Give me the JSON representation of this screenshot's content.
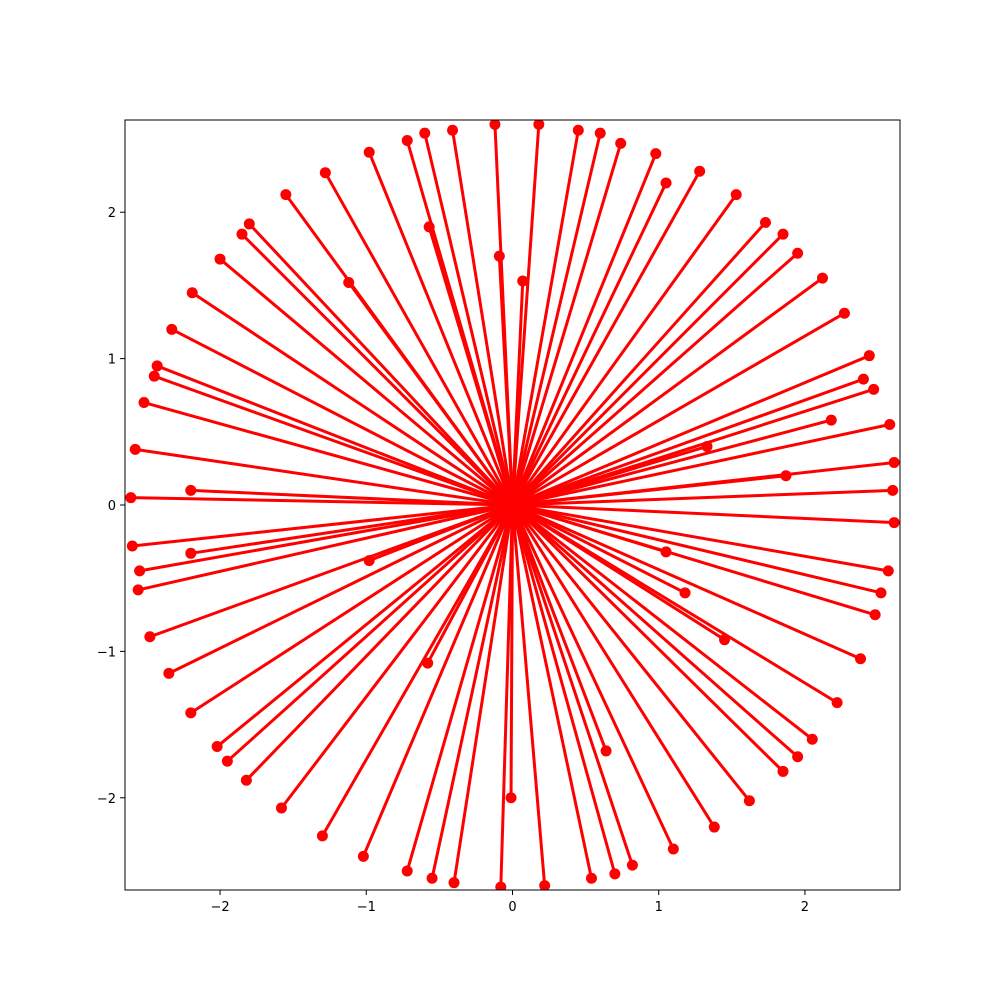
{
  "chart_data": {
    "type": "line",
    "title": "",
    "xlabel": "",
    "ylabel": "",
    "xlim": [
      -2.65,
      2.65
    ],
    "ylim": [
      -2.63,
      2.63
    ],
    "grid": false,
    "legend": null,
    "series_color": "#ff0000",
    "x_ticks": [
      {
        "value": -2,
        "label": "−2"
      },
      {
        "value": -1,
        "label": "−1"
      },
      {
        "value": 0,
        "label": "0"
      },
      {
        "value": 1,
        "label": "1"
      },
      {
        "value": 2,
        "label": "2"
      }
    ],
    "y_ticks": [
      {
        "value": -2,
        "label": "−2"
      },
      {
        "value": -1,
        "label": "−1"
      },
      {
        "value": 0,
        "label": "0"
      },
      {
        "value": 1,
        "label": "1"
      },
      {
        "value": 2,
        "label": "2"
      }
    ],
    "segments": [
      {
        "start": [
          0.0,
          0.0
        ],
        "end": [
          2.61,
          0.29
        ]
      },
      {
        "start": [
          0.0,
          0.0
        ],
        "end": [
          2.58,
          0.55
        ]
      },
      {
        "start": [
          0.0,
          0.0
        ],
        "end": [
          2.47,
          0.79
        ]
      },
      {
        "start": [
          0.0,
          0.0
        ],
        "end": [
          2.44,
          1.02
        ]
      },
      {
        "start": [
          0.0,
          0.0
        ],
        "end": [
          2.27,
          1.31
        ]
      },
      {
        "start": [
          0.0,
          0.0
        ],
        "end": [
          2.12,
          1.55
        ]
      },
      {
        "start": [
          0.0,
          0.0
        ],
        "end": [
          1.95,
          1.72
        ]
      },
      {
        "start": [
          0.0,
          0.0
        ],
        "end": [
          1.73,
          1.93
        ]
      },
      {
        "start": [
          0.0,
          0.0
        ],
        "end": [
          1.53,
          2.12
        ]
      },
      {
        "start": [
          0.0,
          0.0
        ],
        "end": [
          1.28,
          2.28
        ]
      },
      {
        "start": [
          0.0,
          0.0
        ],
        "end": [
          0.98,
          2.4
        ]
      },
      {
        "start": [
          0.0,
          0.0
        ],
        "end": [
          0.74,
          2.47
        ]
      },
      {
        "start": [
          0.0,
          0.0
        ],
        "end": [
          0.45,
          2.56
        ]
      },
      {
        "start": [
          0.0,
          0.0
        ],
        "end": [
          0.18,
          2.6
        ]
      },
      {
        "start": [
          0.0,
          0.0
        ],
        "end": [
          -0.12,
          2.6
        ]
      },
      {
        "start": [
          0.0,
          0.0
        ],
        "end": [
          -0.41,
          2.56
        ]
      },
      {
        "start": [
          0.0,
          0.0
        ],
        "end": [
          -0.72,
          2.49
        ]
      },
      {
        "start": [
          0.0,
          0.0
        ],
        "end": [
          -0.98,
          2.41
        ]
      },
      {
        "start": [
          0.0,
          0.0
        ],
        "end": [
          -1.28,
          2.27
        ]
      },
      {
        "start": [
          0.0,
          0.0
        ],
        "end": [
          -1.55,
          2.12
        ]
      },
      {
        "start": [
          0.0,
          0.0
        ],
        "end": [
          -1.8,
          1.92
        ]
      },
      {
        "start": [
          0.0,
          0.0
        ],
        "end": [
          -2.0,
          1.68
        ]
      },
      {
        "start": [
          0.0,
          0.0
        ],
        "end": [
          -2.19,
          1.45
        ]
      },
      {
        "start": [
          0.0,
          0.0
        ],
        "end": [
          -2.33,
          1.2
        ]
      },
      {
        "start": [
          0.0,
          0.0
        ],
        "end": [
          -2.43,
          0.95
        ]
      },
      {
        "start": [
          0.0,
          0.0
        ],
        "end": [
          -2.52,
          0.7
        ]
      },
      {
        "start": [
          0.0,
          0.0
        ],
        "end": [
          -2.58,
          0.38
        ]
      },
      {
        "start": [
          0.0,
          0.0
        ],
        "end": [
          -2.61,
          0.05
        ]
      },
      {
        "start": [
          0.0,
          0.0
        ],
        "end": [
          -2.6,
          -0.28
        ]
      },
      {
        "start": [
          0.0,
          0.0
        ],
        "end": [
          -2.56,
          -0.58
        ]
      },
      {
        "start": [
          0.0,
          0.0
        ],
        "end": [
          -2.48,
          -0.9
        ]
      },
      {
        "start": [
          0.0,
          0.0
        ],
        "end": [
          -2.35,
          -1.15
        ]
      },
      {
        "start": [
          0.0,
          0.0
        ],
        "end": [
          -2.2,
          -1.42
        ]
      },
      {
        "start": [
          0.0,
          0.0
        ],
        "end": [
          -2.02,
          -1.65
        ]
      },
      {
        "start": [
          0.0,
          0.0
        ],
        "end": [
          -1.82,
          -1.88
        ]
      },
      {
        "start": [
          0.0,
          0.0
        ],
        "end": [
          -1.58,
          -2.07
        ]
      },
      {
        "start": [
          0.0,
          0.0
        ],
        "end": [
          -1.3,
          -2.26
        ]
      },
      {
        "start": [
          0.0,
          0.0
        ],
        "end": [
          -1.02,
          -2.4
        ]
      },
      {
        "start": [
          0.0,
          0.0
        ],
        "end": [
          -0.72,
          -2.5
        ]
      },
      {
        "start": [
          0.0,
          0.0
        ],
        "end": [
          -0.4,
          -2.58
        ]
      },
      {
        "start": [
          0.0,
          0.0
        ],
        "end": [
          -0.08,
          -2.61
        ]
      },
      {
        "start": [
          0.0,
          0.0
        ],
        "end": [
          0.22,
          -2.6
        ]
      },
      {
        "start": [
          0.0,
          0.0
        ],
        "end": [
          0.54,
          -2.55
        ]
      },
      {
        "start": [
          0.0,
          0.0
        ],
        "end": [
          0.82,
          -2.46
        ]
      },
      {
        "start": [
          0.0,
          0.0
        ],
        "end": [
          1.1,
          -2.35
        ]
      },
      {
        "start": [
          0.0,
          0.0
        ],
        "end": [
          1.38,
          -2.2
        ]
      },
      {
        "start": [
          0.0,
          0.0
        ],
        "end": [
          1.62,
          -2.02
        ]
      },
      {
        "start": [
          0.0,
          0.0
        ],
        "end": [
          1.85,
          -1.82
        ]
      },
      {
        "start": [
          0.0,
          0.0
        ],
        "end": [
          2.05,
          -1.6
        ]
      },
      {
        "start": [
          0.0,
          0.0
        ],
        "end": [
          2.22,
          -1.35
        ]
      },
      {
        "start": [
          0.0,
          0.0
        ],
        "end": [
          2.38,
          -1.05
        ]
      },
      {
        "start": [
          0.0,
          0.0
        ],
        "end": [
          2.48,
          -0.75
        ]
      },
      {
        "start": [
          0.0,
          0.0
        ],
        "end": [
          2.57,
          -0.45
        ]
      },
      {
        "start": [
          0.0,
          0.0
        ],
        "end": [
          2.61,
          -0.12
        ]
      },
      {
        "start": [
          0.0,
          0.0
        ],
        "end": [
          2.6,
          0.1
        ]
      },
      {
        "start": [
          0.0,
          0.0
        ],
        "end": [
          2.4,
          0.86
        ]
      },
      {
        "start": [
          0.0,
          0.0
        ],
        "end": [
          1.85,
          1.85
        ]
      },
      {
        "start": [
          0.0,
          0.0
        ],
        "end": [
          0.6,
          2.54
        ]
      },
      {
        "start": [
          0.0,
          0.0
        ],
        "end": [
          -0.6,
          2.54
        ]
      },
      {
        "start": [
          0.0,
          0.0
        ],
        "end": [
          -1.85,
          1.85
        ]
      },
      {
        "start": [
          0.0,
          0.0
        ],
        "end": [
          -2.45,
          0.88
        ]
      },
      {
        "start": [
          0.0,
          0.0
        ],
        "end": [
          -2.55,
          -0.45
        ]
      },
      {
        "start": [
          0.0,
          0.0
        ],
        "end": [
          -1.95,
          -1.75
        ]
      },
      {
        "start": [
          0.0,
          0.0
        ],
        "end": [
          -0.55,
          -2.55
        ]
      },
      {
        "start": [
          0.0,
          0.0
        ],
        "end": [
          0.7,
          -2.52
        ]
      },
      {
        "start": [
          0.0,
          0.0
        ],
        "end": [
          1.95,
          -1.72
        ]
      },
      {
        "start": [
          0.0,
          0.0
        ],
        "end": [
          2.52,
          -0.6
        ]
      },
      {
        "start": [
          0.0,
          0.0
        ],
        "end": [
          2.18,
          0.58
        ]
      },
      {
        "start": [
          0.0,
          0.0
        ],
        "end": [
          1.87,
          0.2
        ]
      },
      {
        "start": [
          0.0,
          0.0
        ],
        "end": [
          1.33,
          0.4
        ]
      },
      {
        "start": [
          0.0,
          0.0
        ],
        "end": [
          -2.2,
          0.1
        ]
      },
      {
        "start": [
          0.0,
          0.0
        ],
        "end": [
          -2.2,
          -0.33
        ]
      },
      {
        "start": [
          0.0,
          0.0
        ],
        "end": [
          -0.98,
          -0.38
        ]
      },
      {
        "start": [
          0.0,
          0.0
        ],
        "end": [
          -0.58,
          -1.08
        ]
      },
      {
        "start": [
          0.0,
          0.0
        ],
        "end": [
          0.64,
          -1.68
        ]
      },
      {
        "start": [
          0.0,
          0.0
        ],
        "end": [
          1.05,
          -0.32
        ]
      },
      {
        "start": [
          0.0,
          0.0
        ],
        "end": [
          -0.57,
          1.9
        ]
      },
      {
        "start": [
          0.0,
          0.0
        ],
        "end": [
          -0.09,
          1.7
        ]
      },
      {
        "start": [
          0.0,
          0.0
        ],
        "end": [
          0.07,
          1.53
        ]
      },
      {
        "start": [
          0.0,
          0.0
        ],
        "end": [
          -1.12,
          1.52
        ]
      },
      {
        "start": [
          0.0,
          0.0
        ],
        "end": [
          1.05,
          2.2
        ]
      },
      {
        "start": [
          0.0,
          0.0
        ],
        "end": [
          -0.01,
          -2.0
        ]
      },
      {
        "start": [
          0.0,
          0.0
        ],
        "end": [
          1.45,
          -0.92
        ]
      },
      {
        "start": [
          0.0,
          0.0
        ],
        "end": [
          1.18,
          -0.6
        ]
      }
    ]
  }
}
